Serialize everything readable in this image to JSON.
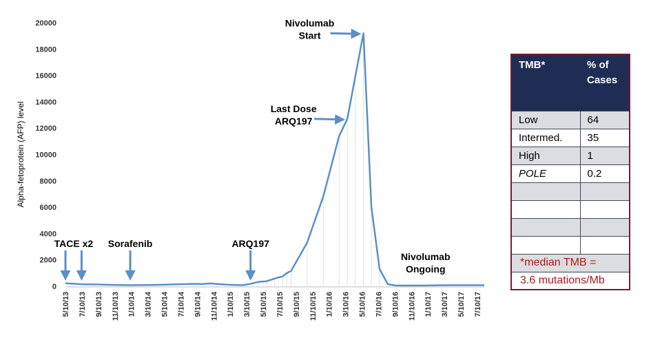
{
  "chart_data": {
    "type": "line",
    "ylabel": "Alpha-fetoprotein (AFP) level",
    "xlabel": "",
    "ylim": [
      0,
      20000
    ],
    "yticks": [
      "0",
      "2000",
      "4000",
      "6000",
      "8000",
      "10000",
      "12000",
      "14000",
      "16000",
      "18000",
      "20000"
    ],
    "xticks": [
      "5/10/13",
      "7/10/13",
      "9/10/13",
      "11/10/13",
      "1/10/14",
      "3/10/14",
      "5/10/14",
      "7/10/14",
      "9/10/14",
      "11/10/14",
      "1/10/15",
      "3/10/15",
      "5/10/15",
      "7/10/15",
      "9/10/15",
      "11/10/15",
      "1/10/16",
      "3/10/16",
      "5/10/16",
      "7/10/16",
      "9/10/16",
      "11/10/16",
      "1/10/17",
      "3/10/17",
      "5/10/17",
      "7/10/17"
    ],
    "line_color": "#5b8fc7",
    "series": [
      {
        "x": [
          "2013-05-10",
          "2013-07-10",
          "2013-09-10",
          "2013-11-10",
          "2014-01-10",
          "2014-03-10",
          "2014-05-10",
          "2014-07-10",
          "2014-09-10",
          "2014-10-10",
          "2014-11-10",
          "2015-01-10",
          "2015-03-10",
          "2015-04-10",
          "2015-05-10",
          "2015-06-10",
          "2015-07-10",
          "2015-08-10",
          "2015-08-25",
          "2015-09-10",
          "2015-11-10",
          "2016-01-10",
          "2016-03-10",
          "2016-04-10",
          "2016-05-10",
          "2016-06-10",
          "2016-07-10",
          "2016-08-10",
          "2016-09-10",
          "2016-10-10",
          "2016-11-10",
          "2017-01-10",
          "2017-03-10",
          "2017-05-10",
          "2017-07-10",
          "2017-09-10"
        ],
        "y": [
          220,
          150,
          130,
          100,
          80,
          90,
          110,
          150,
          180,
          170,
          210,
          120,
          80,
          180,
          330,
          380,
          580,
          750,
          1000,
          1150,
          3300,
          6800,
          11400,
          12700,
          15900,
          19200,
          6000,
          1300,
          150,
          60,
          50,
          50,
          70,
          80,
          80,
          80
        ]
      }
    ],
    "annotations": [
      {
        "lines": [
          "TACE x2"
        ],
        "date": "2013-06-10",
        "arrows": [
          "2013-05-10",
          "2013-07-10"
        ]
      },
      {
        "lines": [
          "Sorafenib"
        ],
        "date": "2014-01-10",
        "arrows": [
          "2014-01-10"
        ]
      },
      {
        "lines": [
          "ARQ197"
        ],
        "date": "2015-04-10",
        "arrows": [
          "2015-04-10"
        ]
      },
      {
        "lines": [
          "Last Dose",
          "ARQ197"
        ],
        "target_date": "2016-04-10",
        "target_value": 12700
      },
      {
        "lines": [
          "Nivolumab",
          "Start"
        ],
        "target_date": "2016-06-10",
        "target_value": 19200
      },
      {
        "lines": [
          "Nivolumab",
          "Ongoing"
        ],
        "date": "2017-01-10"
      }
    ]
  },
  "tmb_table": {
    "header": [
      "TMB*",
      "% of Cases"
    ],
    "rows": [
      {
        "label": "Low",
        "value": "64"
      },
      {
        "label": "Intermed.",
        "value": "35"
      },
      {
        "label": "High",
        "value": "1"
      },
      {
        "label": "POLE",
        "value": "0.2"
      }
    ],
    "footnote_line1": "*median TMB =",
    "footnote_line2": "3.6 mutations/Mb"
  }
}
